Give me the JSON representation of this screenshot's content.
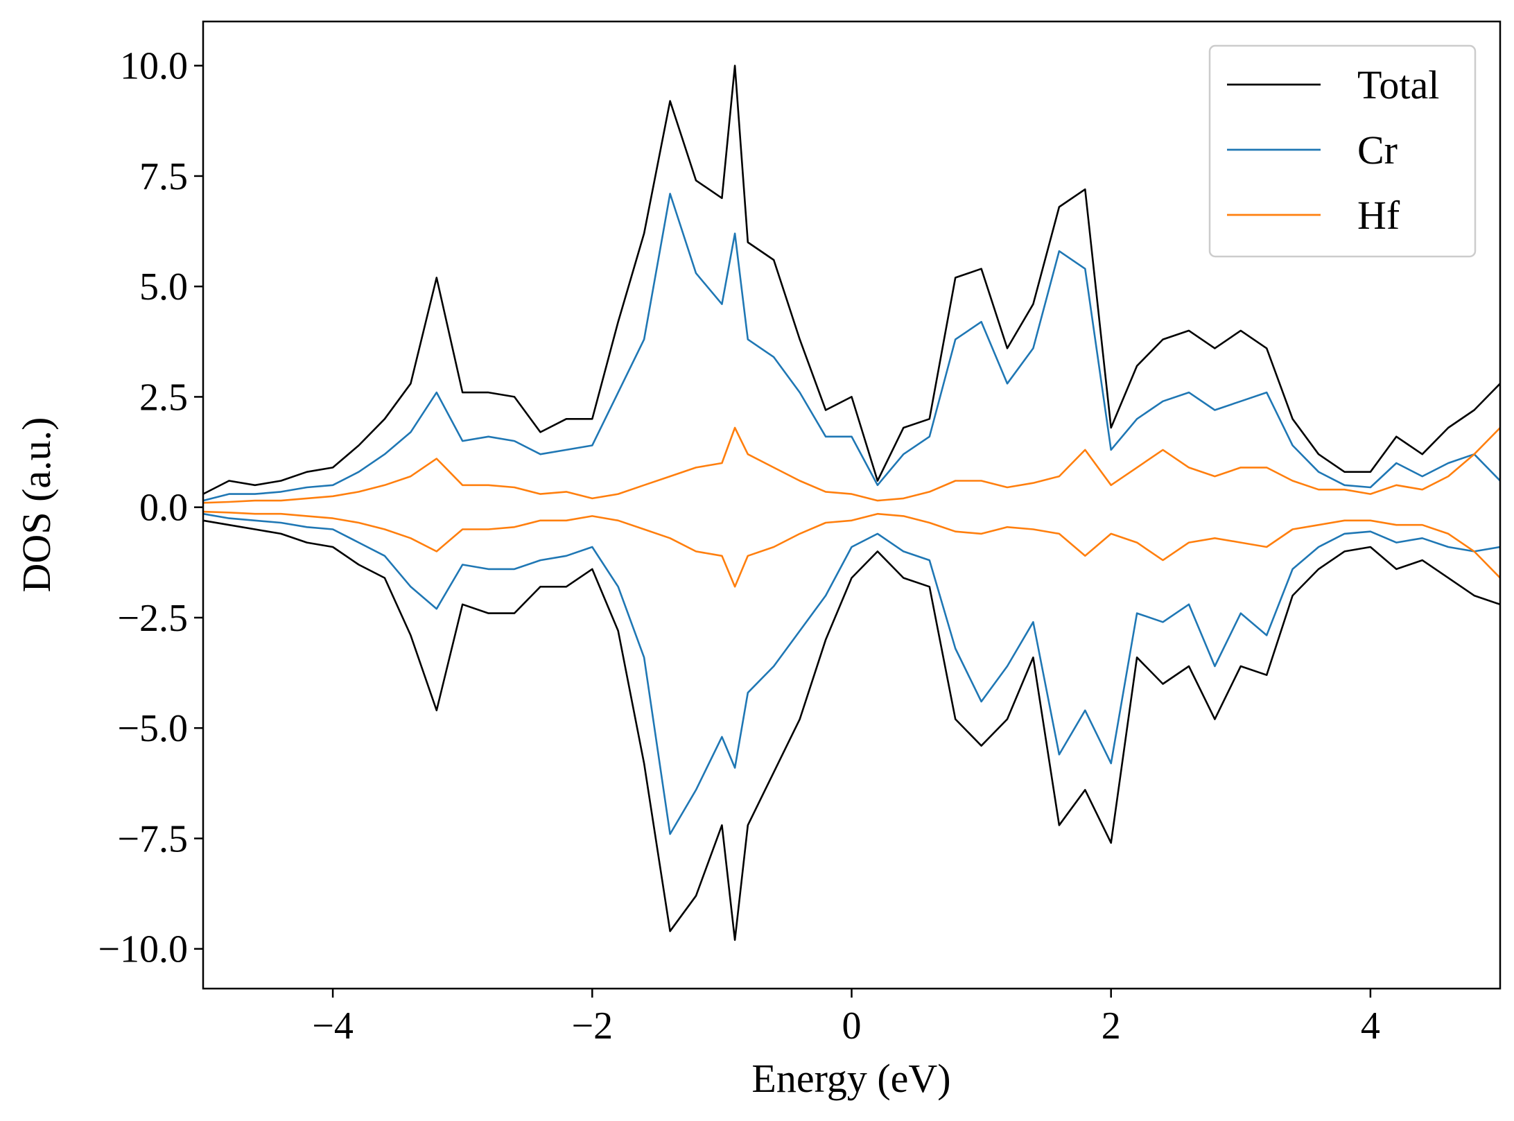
{
  "chart_data": {
    "type": "line",
    "title": "",
    "xlabel": "Energy (eV)",
    "ylabel": "DOS (a.u.)",
    "xlim": [
      -5,
      5
    ],
    "ylim": [
      -10.9,
      11.0
    ],
    "grid": false,
    "legend_position": "top-right",
    "x_ticks": [
      -4,
      -2,
      0,
      2,
      4
    ],
    "x_tick_labels": [
      "−4",
      "−2",
      "0",
      "2",
      "4"
    ],
    "y_ticks": [
      10,
      7.5,
      5,
      2.5,
      0,
      -2.5,
      -5,
      -7.5,
      -10
    ],
    "y_tick_labels": [
      "10.0",
      "7.5",
      "5.0",
      "2.5",
      "0.0",
      "−2.5",
      "−5.0",
      "−7.5",
      "−10.0"
    ],
    "x": [
      -5.0,
      -4.8,
      -4.6,
      -4.4,
      -4.2,
      -4.0,
      -3.8,
      -3.6,
      -3.4,
      -3.2,
      -3.0,
      -2.8,
      -2.6,
      -2.4,
      -2.2,
      -2.0,
      -1.8,
      -1.6,
      -1.4,
      -1.2,
      -1.0,
      -0.9,
      -0.8,
      -0.6,
      -0.4,
      -0.2,
      0.0,
      0.2,
      0.4,
      0.6,
      0.8,
      1.0,
      1.2,
      1.4,
      1.6,
      1.8,
      2.0,
      2.2,
      2.4,
      2.6,
      2.8,
      3.0,
      3.2,
      3.4,
      3.6,
      3.8,
      4.0,
      4.2,
      4.4,
      4.6,
      4.8,
      5.0
    ],
    "series": [
      {
        "name": "Total",
        "color": "#000000",
        "values": [
          0.3,
          0.6,
          0.5,
          0.6,
          0.8,
          0.9,
          1.4,
          2.0,
          2.8,
          5.2,
          2.6,
          2.6,
          2.5,
          1.7,
          2.0,
          2.0,
          4.2,
          6.2,
          9.2,
          7.4,
          7.0,
          10.0,
          6.0,
          5.6,
          3.8,
          2.2,
          2.5,
          0.6,
          1.8,
          2.0,
          5.2,
          5.4,
          3.6,
          4.6,
          6.8,
          7.2,
          1.8,
          3.2,
          3.8,
          4.0,
          3.6,
          4.0,
          3.6,
          2.0,
          1.2,
          0.8,
          0.8,
          1.6,
          1.2,
          1.8,
          2.2,
          2.8
        ],
        "values_down": [
          -0.3,
          -0.4,
          -0.5,
          -0.6,
          -0.8,
          -0.9,
          -1.3,
          -1.6,
          -2.9,
          -4.6,
          -2.2,
          -2.4,
          -2.4,
          -1.8,
          -1.8,
          -1.4,
          -2.8,
          -5.8,
          -9.6,
          -8.8,
          -7.2,
          -9.8,
          -7.2,
          -6.0,
          -4.8,
          -3.0,
          -1.6,
          -1.0,
          -1.6,
          -1.8,
          -4.8,
          -5.4,
          -4.8,
          -3.4,
          -7.2,
          -6.4,
          -7.6,
          -3.4,
          -4.0,
          -3.6,
          -4.8,
          -3.6,
          -3.8,
          -2.0,
          -1.4,
          -1.0,
          -0.9,
          -1.4,
          -1.2,
          -1.6,
          -2.0,
          -2.2
        ]
      },
      {
        "name": "Cr",
        "color": "#1f77b4",
        "values": [
          0.15,
          0.3,
          0.3,
          0.35,
          0.45,
          0.5,
          0.8,
          1.2,
          1.7,
          2.6,
          1.5,
          1.6,
          1.5,
          1.2,
          1.3,
          1.4,
          2.6,
          3.8,
          7.1,
          5.3,
          4.6,
          6.2,
          3.8,
          3.4,
          2.6,
          1.6,
          1.6,
          0.5,
          1.2,
          1.6,
          3.8,
          4.2,
          2.8,
          3.6,
          5.8,
          5.4,
          1.3,
          2.0,
          2.4,
          2.6,
          2.2,
          2.4,
          2.6,
          1.4,
          0.8,
          0.5,
          0.45,
          1.0,
          0.7,
          1.0,
          1.2,
          0.6
        ],
        "values_down": [
          -0.15,
          -0.25,
          -0.3,
          -0.35,
          -0.45,
          -0.5,
          -0.8,
          -1.1,
          -1.8,
          -2.3,
          -1.3,
          -1.4,
          -1.4,
          -1.2,
          -1.1,
          -0.9,
          -1.8,
          -3.4,
          -7.4,
          -6.4,
          -5.2,
          -5.9,
          -4.2,
          -3.6,
          -2.8,
          -2.0,
          -0.9,
          -0.6,
          -1.0,
          -1.2,
          -3.2,
          -4.4,
          -3.6,
          -2.6,
          -5.6,
          -4.6,
          -5.8,
          -2.4,
          -2.6,
          -2.2,
          -3.6,
          -2.4,
          -2.9,
          -1.4,
          -0.9,
          -0.6,
          -0.55,
          -0.8,
          -0.7,
          -0.9,
          -1.0,
          -0.9
        ]
      },
      {
        "name": "Hf",
        "color": "#ff7f0e",
        "values": [
          0.1,
          0.12,
          0.15,
          0.15,
          0.2,
          0.25,
          0.35,
          0.5,
          0.7,
          1.1,
          0.5,
          0.5,
          0.45,
          0.3,
          0.35,
          0.2,
          0.3,
          0.5,
          0.7,
          0.9,
          1.0,
          1.8,
          1.2,
          0.9,
          0.6,
          0.35,
          0.3,
          0.15,
          0.2,
          0.35,
          0.6,
          0.6,
          0.45,
          0.55,
          0.7,
          1.3,
          0.5,
          0.9,
          1.3,
          0.9,
          0.7,
          0.9,
          0.9,
          0.6,
          0.4,
          0.4,
          0.3,
          0.5,
          0.4,
          0.7,
          1.2,
          1.8
        ],
        "values_down": [
          -0.1,
          -0.12,
          -0.15,
          -0.15,
          -0.2,
          -0.25,
          -0.35,
          -0.5,
          -0.7,
          -1.0,
          -0.5,
          -0.5,
          -0.45,
          -0.3,
          -0.3,
          -0.2,
          -0.3,
          -0.5,
          -0.7,
          -1.0,
          -1.1,
          -1.8,
          -1.1,
          -0.9,
          -0.6,
          -0.35,
          -0.3,
          -0.15,
          -0.2,
          -0.35,
          -0.55,
          -0.6,
          -0.45,
          -0.5,
          -0.6,
          -1.1,
          -0.6,
          -0.8,
          -1.2,
          -0.8,
          -0.7,
          -0.8,
          -0.9,
          -0.5,
          -0.4,
          -0.3,
          -0.3,
          -0.4,
          -0.4,
          -0.6,
          -1.0,
          -1.6
        ]
      }
    ]
  }
}
